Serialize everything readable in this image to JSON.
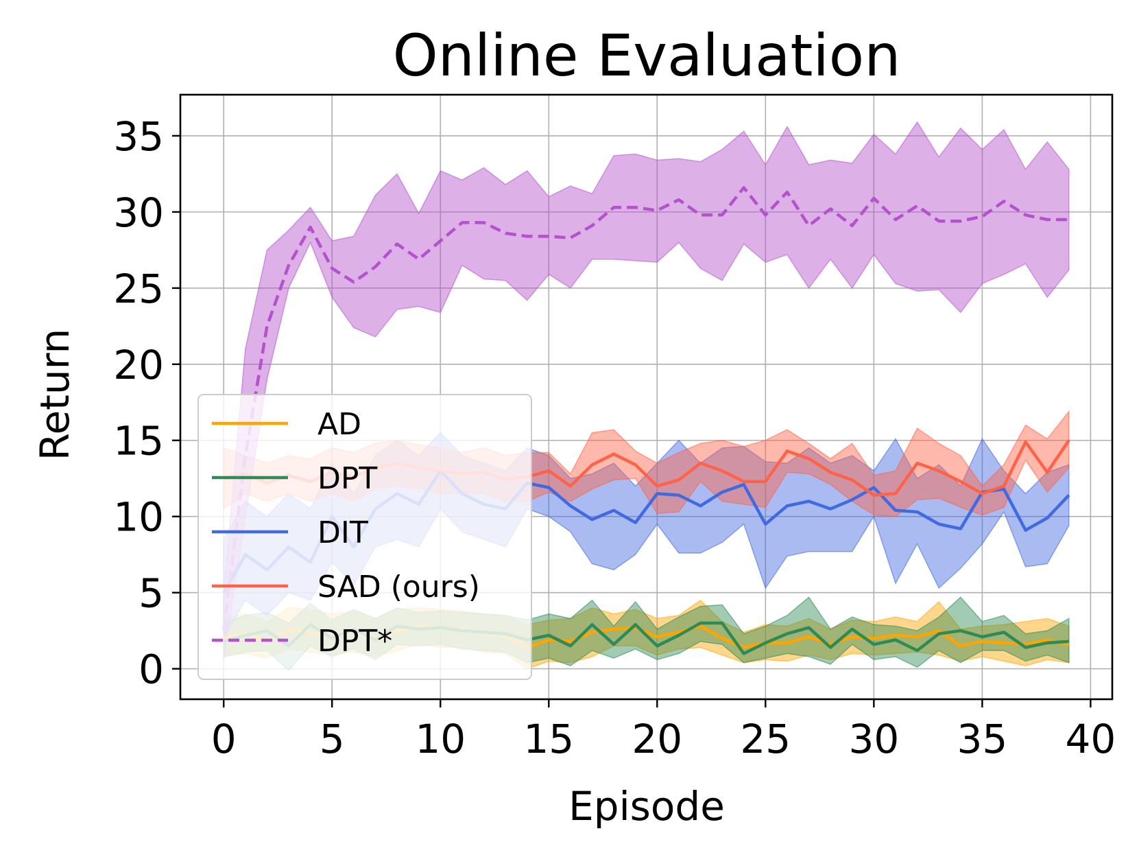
{
  "chart_data": {
    "type": "line",
    "title": "Online Evaluation",
    "xlabel": "Episode",
    "ylabel": "Return",
    "xlim": [
      -2,
      41
    ],
    "ylim": [
      -2,
      37.7
    ],
    "xticks": [
      0,
      5,
      10,
      15,
      20,
      25,
      30,
      35,
      40
    ],
    "yticks": [
      0,
      5,
      10,
      15,
      20,
      25,
      30,
      35
    ],
    "grid": true,
    "legend_position": "lower-left",
    "x": [
      0,
      1,
      2,
      3,
      4,
      5,
      6,
      7,
      8,
      9,
      10,
      11,
      12,
      13,
      14,
      15,
      16,
      17,
      18,
      19,
      20,
      21,
      22,
      23,
      24,
      25,
      26,
      27,
      28,
      29,
      30,
      31,
      32,
      33,
      34,
      35,
      36,
      37,
      38,
      39
    ],
    "series": [
      {
        "name": "AD",
        "color": "#ffa500",
        "style": "solid",
        "values": [
          2.0,
          2.3,
          1.8,
          2.6,
          2.4,
          2.1,
          2.4,
          2.0,
          2.5,
          2.8,
          2.7,
          2.6,
          2.3,
          2.2,
          1.4,
          1.9,
          1.8,
          2.4,
          2.6,
          2.7,
          2.1,
          2.4,
          2.8,
          2.0,
          1.4,
          1.7,
          1.7,
          2.1,
          1.6,
          2.1,
          2.0,
          2.2,
          2.1,
          2.5,
          1.5,
          1.8,
          1.7,
          1.6,
          1.9,
          1.6
        ],
        "upper": [
          3.3,
          3.6,
          3.1,
          4.0,
          3.9,
          3.6,
          3.8,
          3.3,
          3.9,
          4.0,
          3.9,
          3.8,
          3.6,
          3.5,
          2.9,
          3.2,
          3.3,
          4.0,
          3.6,
          3.9,
          3.3,
          3.5,
          4.5,
          3.1,
          2.4,
          2.9,
          2.8,
          3.3,
          2.6,
          3.2,
          3.1,
          3.4,
          3.1,
          4.4,
          2.6,
          2.8,
          2.9,
          3.1,
          3.3,
          2.8
        ],
        "lower": [
          0.8,
          1.0,
          0.7,
          1.3,
          1.1,
          0.9,
          1.1,
          0.8,
          1.2,
          1.6,
          1.4,
          1.4,
          1.1,
          1.0,
          0.0,
          0.5,
          0.4,
          0.8,
          1.5,
          1.5,
          0.9,
          1.3,
          1.4,
          0.9,
          0.4,
          0.6,
          0.5,
          0.9,
          0.6,
          1.0,
          0.9,
          1.0,
          1.1,
          0.9,
          0.5,
          0.8,
          0.5,
          0.2,
          0.6,
          0.4
        ]
      },
      {
        "name": "DPT",
        "color": "#2e8b57",
        "style": "solid",
        "values": [
          1.8,
          2.2,
          2.5,
          1.5,
          2.9,
          2.0,
          2.6,
          1.9,
          2.8,
          2.6,
          2.7,
          2.5,
          2.4,
          2.3,
          1.9,
          2.2,
          1.5,
          2.9,
          1.6,
          2.9,
          1.5,
          2.2,
          3.0,
          3.0,
          1.0,
          1.7,
          2.3,
          2.7,
          1.4,
          2.6,
          1.6,
          1.9,
          1.2,
          2.3,
          2.5,
          2.1,
          2.4,
          1.4,
          1.7,
          1.8
        ],
        "upper": [
          3.0,
          3.5,
          3.7,
          3.0,
          4.3,
          3.2,
          3.9,
          3.3,
          4.0,
          3.7,
          3.8,
          3.7,
          3.6,
          3.5,
          3.2,
          3.6,
          3.3,
          4.5,
          2.8,
          4.4,
          2.6,
          3.4,
          4.1,
          4.2,
          2.3,
          2.8,
          3.5,
          4.7,
          2.6,
          3.4,
          2.9,
          2.8,
          2.5,
          3.4,
          4.7,
          3.1,
          3.5,
          2.3,
          2.5,
          3.3
        ],
        "lower": [
          0.8,
          1.1,
          1.2,
          -0.1,
          1.5,
          0.8,
          1.3,
          0.6,
          1.6,
          1.5,
          1.6,
          1.3,
          1.2,
          1.1,
          0.4,
          0.7,
          0.2,
          1.2,
          0.7,
          1.3,
          0.6,
          1.0,
          1.8,
          1.6,
          0.4,
          0.7,
          1.0,
          0.8,
          0.3,
          1.6,
          0.6,
          0.8,
          0.1,
          1.2,
          0.4,
          1.2,
          1.2,
          0.5,
          0.9,
          0.4
        ]
      },
      {
        "name": "DIT",
        "color": "#4169e1",
        "style": "solid",
        "values": [
          5.0,
          7.5,
          6.5,
          8.0,
          7.0,
          10.0,
          8.0,
          10.5,
          11.5,
          10.8,
          13.0,
          11.5,
          10.8,
          10.5,
          12.2,
          11.9,
          10.7,
          9.8,
          10.4,
          9.6,
          11.5,
          11.4,
          10.7,
          11.6,
          12.1,
          9.5,
          10.7,
          11.0,
          10.5,
          11.1,
          11.9,
          10.4,
          10.3,
          9.5,
          9.2,
          11.6,
          11.8,
          9.1,
          9.9,
          11.4
        ],
        "upper": [
          8.5,
          11.0,
          10.0,
          11.5,
          10.5,
          13.5,
          11.5,
          14.0,
          15.0,
          14.0,
          15.5,
          14.0,
          13.5,
          13.0,
          14.5,
          14.0,
          12.5,
          12.8,
          13.5,
          12.0,
          13.5,
          15.0,
          13.5,
          14.5,
          14.6,
          13.6,
          13.5,
          14.5,
          13.5,
          14.0,
          13.0,
          15.1,
          12.5,
          13.4,
          12.0,
          15.1,
          13.0,
          11.5,
          12.9,
          13.4
        ],
        "lower": [
          2.0,
          4.5,
          3.5,
          5.0,
          4.5,
          7.0,
          5.5,
          8.0,
          8.5,
          8.0,
          10.5,
          9.0,
          8.5,
          8.0,
          10.5,
          10.0,
          9.0,
          6.9,
          6.5,
          7.5,
          9.5,
          7.6,
          7.6,
          8.3,
          9.5,
          5.3,
          7.4,
          7.7,
          7.7,
          7.7,
          10.0,
          5.6,
          8.2,
          5.3,
          6.6,
          8.2,
          10.3,
          6.7,
          6.9,
          9.4
        ]
      },
      {
        "name": "SAD (ours)",
        "color": "#ff6347",
        "style": "solid",
        "values": [
          12.5,
          12.8,
          12.2,
          12.7,
          12.3,
          12.9,
          12.6,
          13.2,
          13.5,
          13.2,
          13.0,
          12.8,
          12.9,
          12.4,
          12.6,
          13.0,
          12.0,
          13.4,
          14.1,
          13.4,
          12.0,
          12.4,
          13.5,
          13.0,
          12.3,
          12.3,
          14.3,
          13.8,
          12.9,
          12.4,
          11.4,
          11.5,
          13.5,
          13.0,
          12.3,
          11.5,
          12.0,
          14.9,
          12.9,
          15.0
        ],
        "upper": [
          14.5,
          14.0,
          13.5,
          14.0,
          13.8,
          14.5,
          14.2,
          14.8,
          15.0,
          14.7,
          14.5,
          14.2,
          14.5,
          14.0,
          14.2,
          14.2,
          12.8,
          15.5,
          15.7,
          14.3,
          13.5,
          14.2,
          14.8,
          15.0,
          14.6,
          15.0,
          15.7,
          14.8,
          13.8,
          14.8,
          12.7,
          13.0,
          15.8,
          14.8,
          14.0,
          12.0,
          13.4,
          16.0,
          15.1,
          16.9
        ],
        "lower": [
          10.5,
          11.5,
          11.0,
          11.5,
          11.0,
          11.5,
          11.0,
          11.8,
          12.0,
          11.8,
          11.5,
          11.5,
          11.5,
          11.0,
          11.0,
          11.6,
          11.0,
          11.8,
          12.4,
          12.5,
          10.2,
          10.3,
          12.3,
          11.0,
          10.8,
          10.6,
          12.9,
          12.8,
          12.1,
          11.0,
          10.1,
          10.0,
          11.1,
          11.2,
          10.6,
          10.1,
          10.6,
          13.7,
          11.6,
          13.2
        ]
      },
      {
        "name": "DPT*",
        "color": "#b452cd",
        "style": "dashed",
        "values": [
          2.5,
          14.0,
          22.5,
          26.5,
          29.0,
          26.3,
          25.4,
          26.4,
          27.9,
          26.9,
          28.1,
          29.3,
          29.3,
          28.6,
          28.4,
          28.4,
          28.3,
          29.1,
          30.3,
          30.3,
          30.1,
          30.8,
          29.8,
          29.8,
          31.6,
          29.8,
          31.3,
          29.1,
          30.2,
          29.1,
          30.9,
          29.5,
          30.4,
          29.4,
          29.4,
          29.7,
          30.7,
          29.8,
          29.5,
          29.5
        ],
        "upper": [
          5.0,
          21.0,
          27.5,
          28.8,
          30.3,
          28.1,
          28.4,
          31.1,
          32.5,
          29.9,
          32.7,
          32.1,
          32.9,
          31.8,
          32.7,
          31.0,
          31.7,
          31.2,
          33.7,
          33.8,
          33.4,
          33.5,
          33.3,
          34.1,
          35.3,
          33.1,
          35.6,
          33.1,
          33.4,
          33.2,
          35.1,
          33.8,
          35.9,
          33.6,
          35.5,
          34.1,
          35.4,
          32.8,
          34.6,
          32.8
        ],
        "lower": [
          0.5,
          10.0,
          19.0,
          25.0,
          28.0,
          24.4,
          22.4,
          21.8,
          23.6,
          23.8,
          23.4,
          26.5,
          25.6,
          25.5,
          24.2,
          25.9,
          25.0,
          26.9,
          26.9,
          26.8,
          26.7,
          28.0,
          26.3,
          25.5,
          27.9,
          26.7,
          27.2,
          25.0,
          26.9,
          25.0,
          27.2,
          25.3,
          24.8,
          24.9,
          23.4,
          25.3,
          25.9,
          26.6,
          24.4,
          26.2
        ]
      }
    ]
  }
}
